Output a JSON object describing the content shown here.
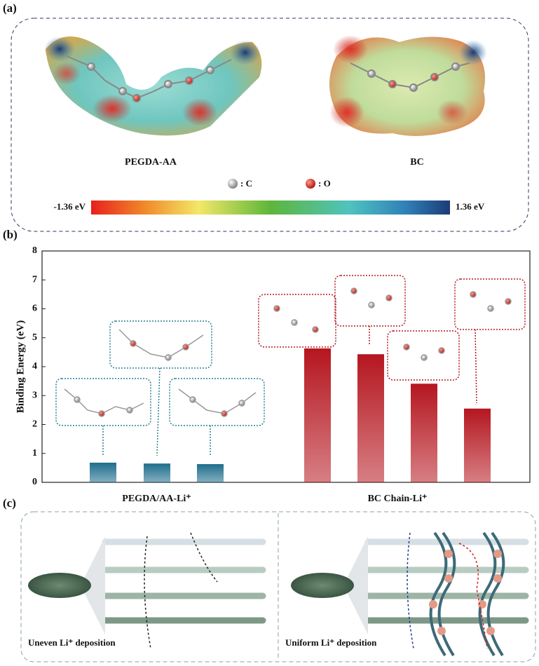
{
  "panel_labels": [
    "(a)",
    "(b)",
    "(c)"
  ],
  "esp": {
    "molecules": [
      "PEGDA-AA",
      "BC"
    ],
    "legend": [
      ": C",
      ": O"
    ],
    "colorbar": [
      "-1.36 eV",
      "1.36 eV"
    ]
  },
  "chart_data": {
    "type": "bar",
    "ylabel": "Binding Energy (eV)",
    "series": [
      {
        "name": "PEGDA/AA-Li⁺",
        "color": "#1f6e8c",
        "values": [
          0.68,
          0.65,
          0.63
        ]
      },
      {
        "name": "BC Chain-Li⁺",
        "color": "#b5161f",
        "values": [
          4.63,
          4.43,
          3.41,
          2.55
        ]
      }
    ],
    "ylim": [
      0,
      8
    ],
    "yticks": [
      0,
      1,
      2,
      3,
      4,
      5,
      6,
      7,
      8
    ]
  },
  "deposition": [
    "Uneven Li⁺ deposition",
    "Uniform Li⁺ deposition"
  ]
}
